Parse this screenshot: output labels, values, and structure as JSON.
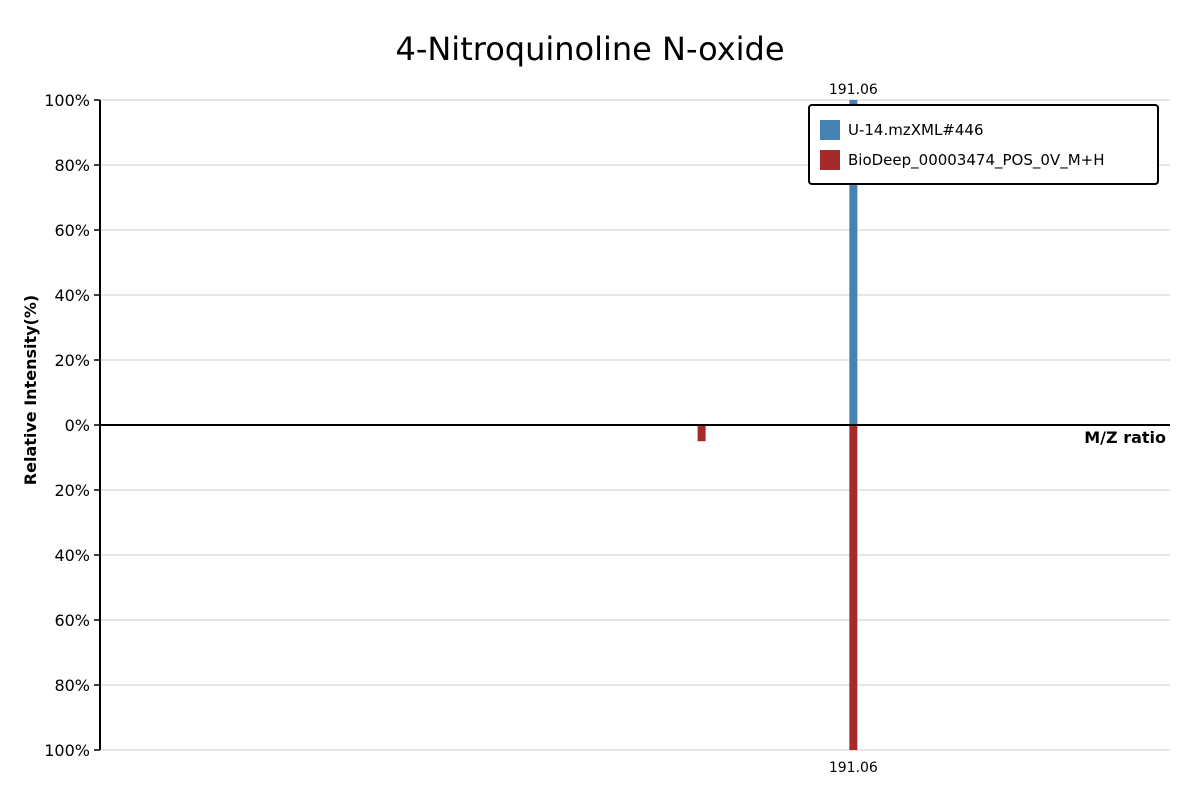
{
  "chart_data": {
    "type": "bar",
    "title": "4-Nitroquinoline N-oxide",
    "xlabel": "M/Z ratio",
    "ylabel": "Relative Intensity(%)",
    "ylim_top": [
      0,
      100
    ],
    "ylim_bottom": [
      0,
      100
    ],
    "y_tick_labels_top": [
      "100%",
      "80%",
      "60%",
      "40%",
      "20%",
      "0%"
    ],
    "y_tick_labels_bottom": [
      "20%",
      "40%",
      "60%",
      "80%",
      "100%"
    ],
    "grid": true,
    "legend_position": "top-right",
    "series": [
      {
        "name": "U-14.mzXML#446",
        "color": "#4682b4",
        "direction": "up",
        "peaks": [
          {
            "mz": 191.06,
            "intensity": 100,
            "label": "191.06"
          }
        ]
      },
      {
        "name": "BioDeep_00003474_POS_0V_M+H",
        "color": "#a52a2a",
        "direction": "down",
        "peaks": [
          {
            "mz": 174.06,
            "intensity": 5,
            "label": ""
          },
          {
            "mz": 191.06,
            "intensity": 100,
            "label": "191.06"
          }
        ]
      }
    ]
  }
}
